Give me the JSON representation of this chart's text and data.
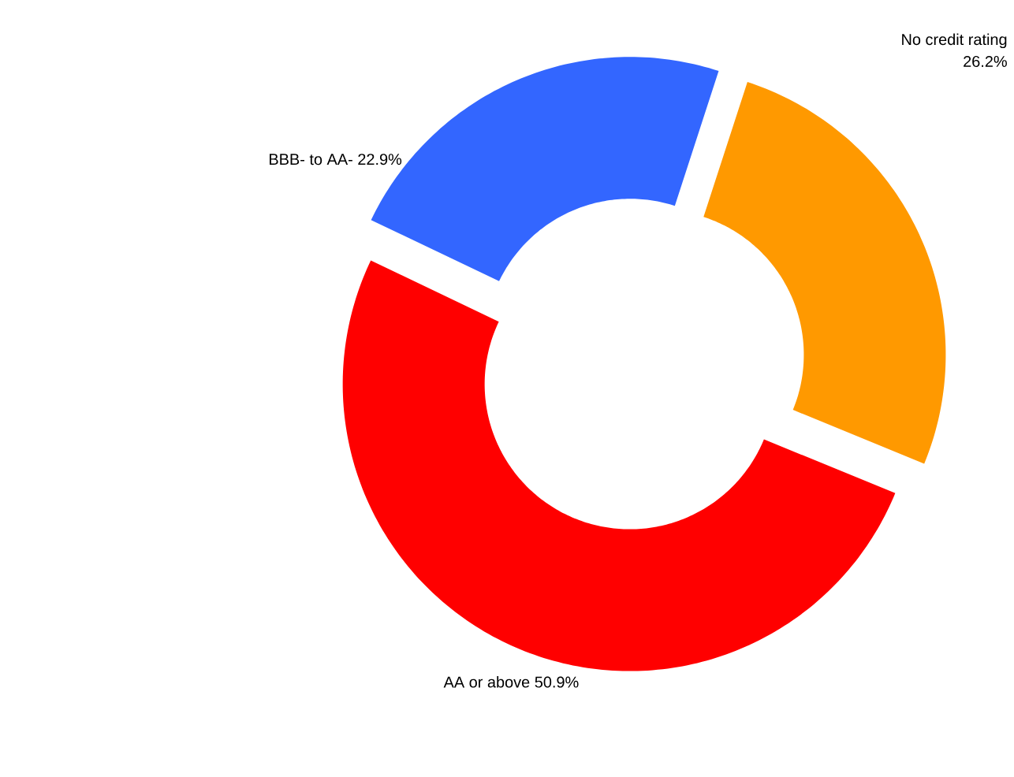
{
  "chart_data": {
    "type": "donut",
    "categories": [
      "No credit rating",
      "AA or above",
      "BBB- to AA-"
    ],
    "values": [
      26.2,
      50.9,
      22.9
    ],
    "value_labels": [
      "26.2%",
      "50.9%",
      "22.9%"
    ],
    "colors": [
      "#ff9900",
      "#ff0000",
      "#3366ff"
    ]
  }
}
